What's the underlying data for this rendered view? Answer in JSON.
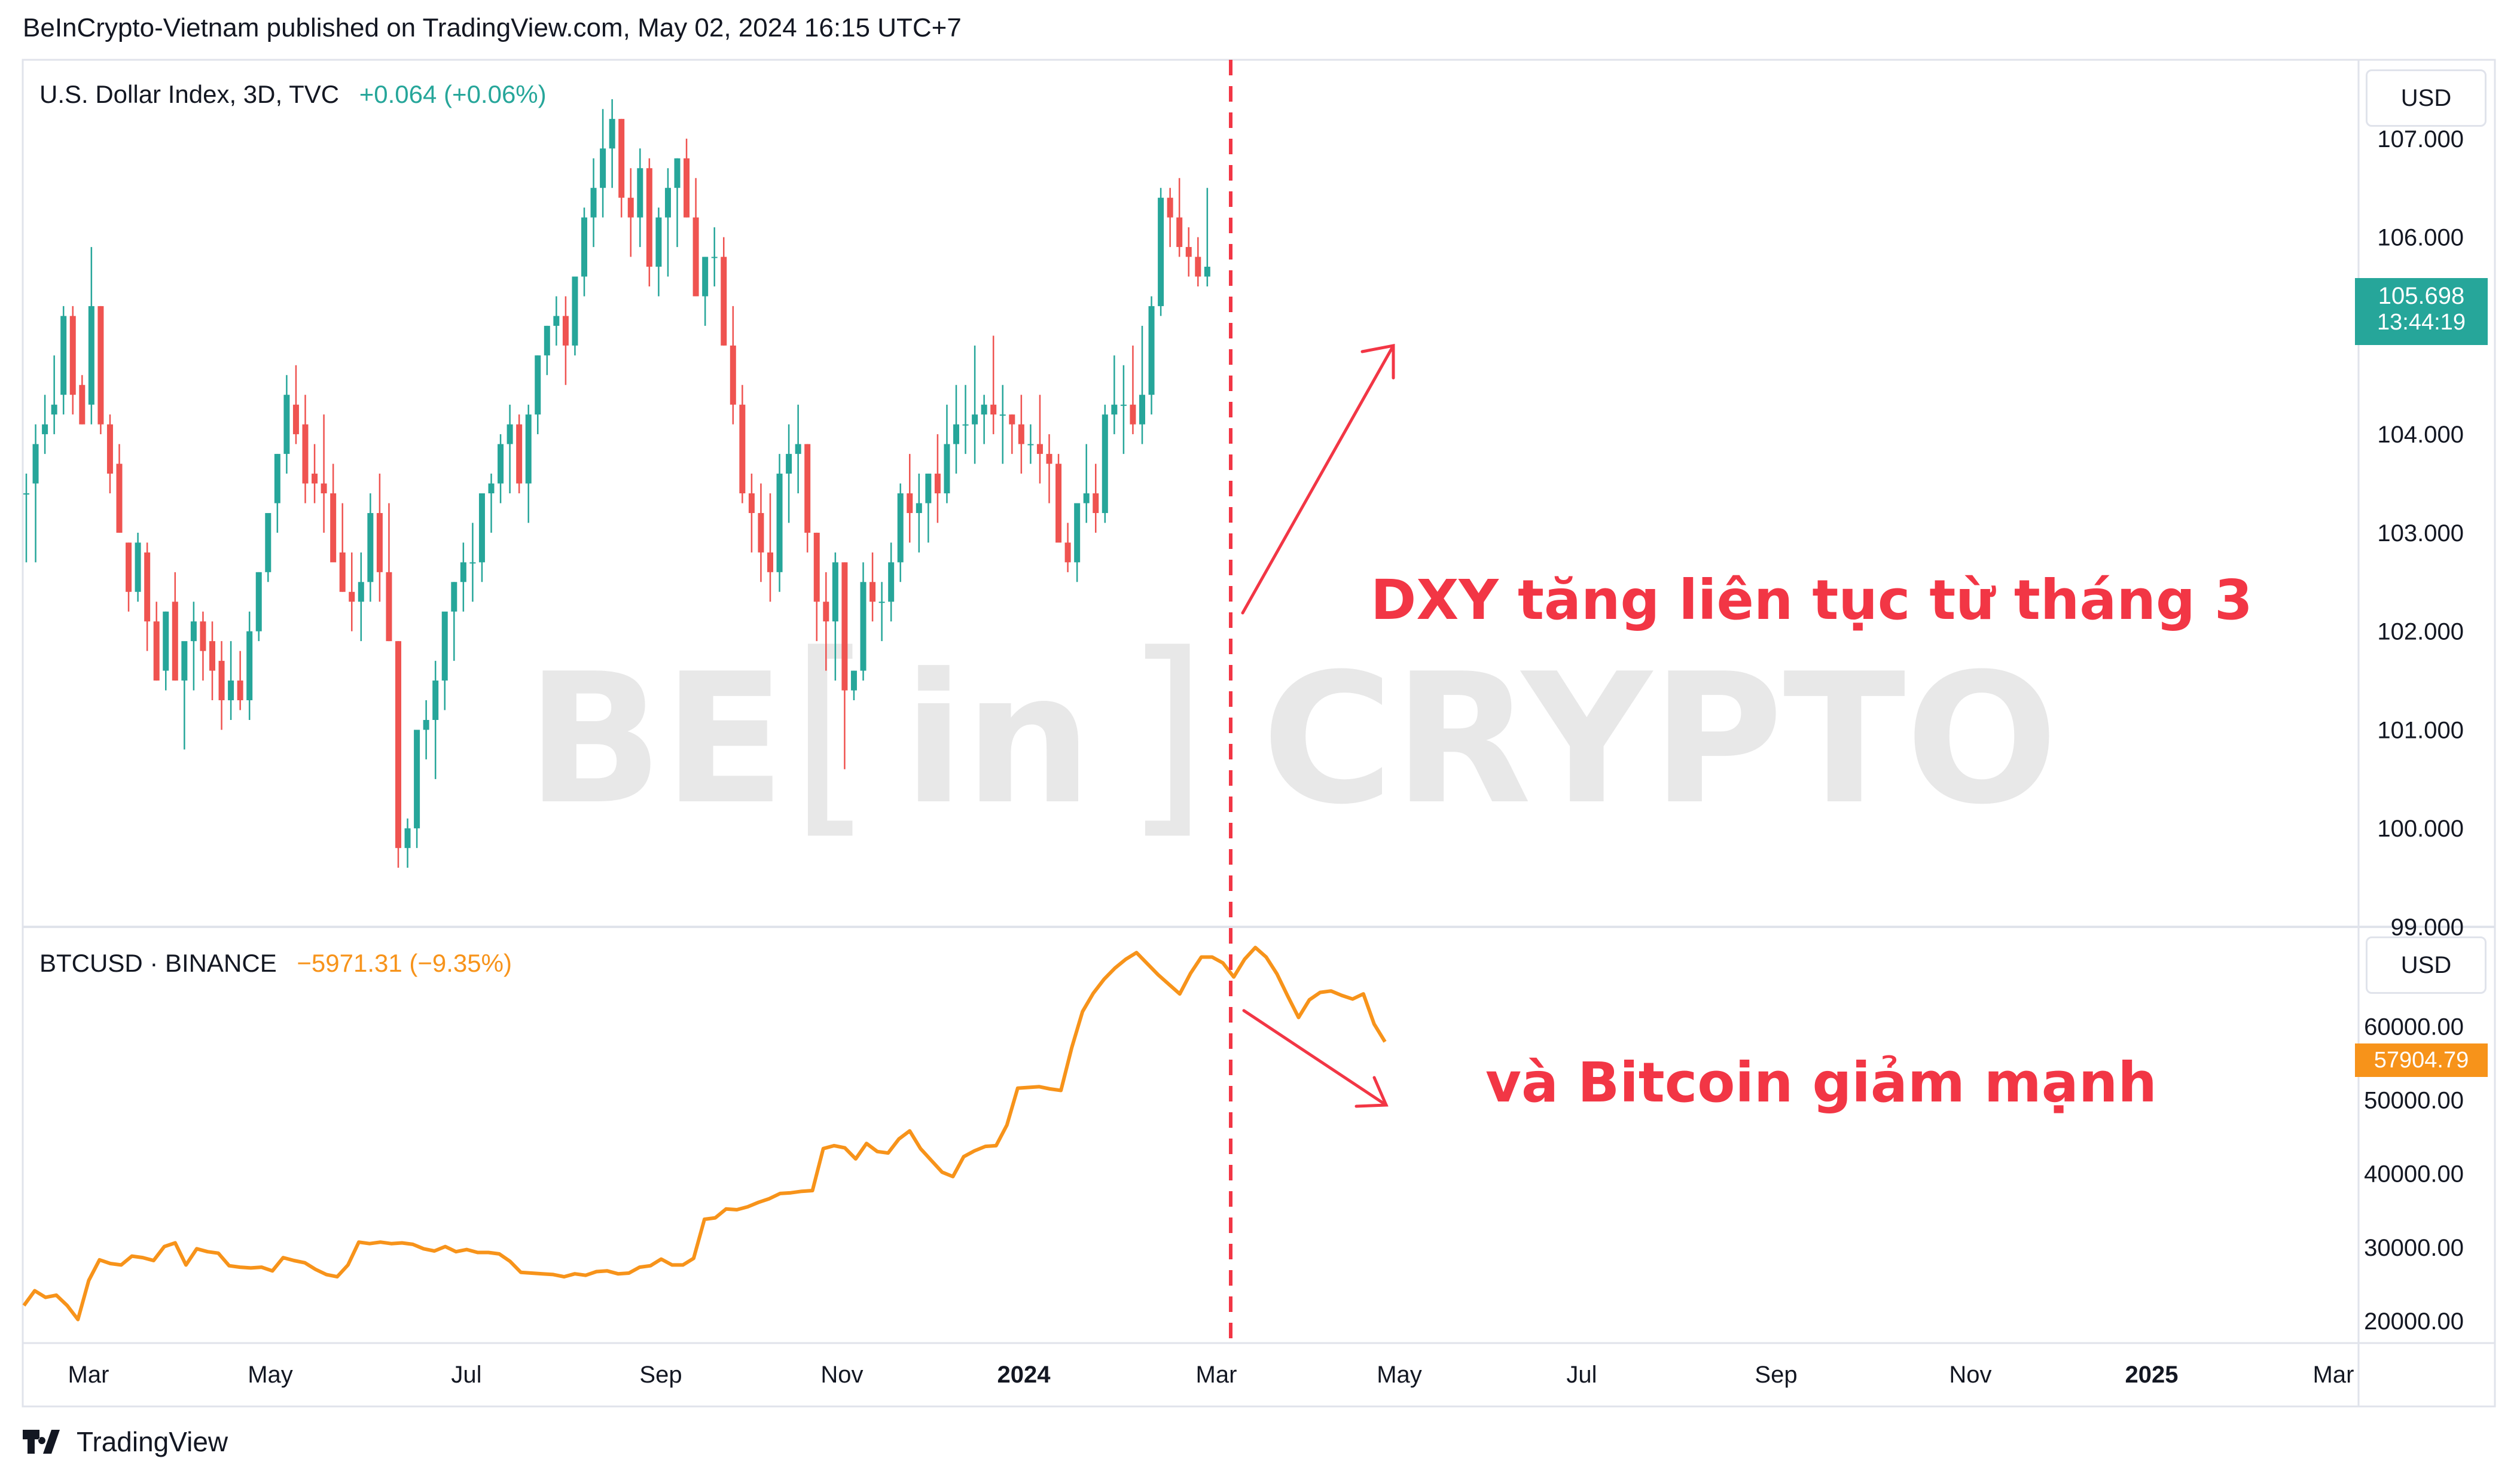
{
  "header": {
    "text": "BeInCrypto-Vietnam published on TradingView.com, May 02, 2024 16:15 UTC+7"
  },
  "footer": {
    "brand": "TradingView",
    "logo_icon": "tradingview-logo-icon"
  },
  "watermark": {
    "text_left": "BE",
    "text_bracket_left": "[",
    "text_mid": "in",
    "text_bracket_right": "]",
    "text_right": "CRYPTO"
  },
  "colors": {
    "up": "#26a69a",
    "down": "#ef5350",
    "btc_line": "#f7931a",
    "annotation": "#f23645",
    "price_tag_dxy": "#26a69a",
    "price_tag_btc": "#f7931a",
    "grid_border": "#e0e3eb"
  },
  "panes": {
    "dxy": {
      "legend_title": "U.S. Dollar Index, 3D, TVC",
      "legend_change": "+0.064 (+0.06%)",
      "currency_button": "USD",
      "price_tag_value": "105.698",
      "price_tag_timer": "13:44:19"
    },
    "btc": {
      "legend_title": "BTCUSD · BINANCE",
      "legend_change": "−5971.31 (−9.35%)",
      "currency_button": "USD",
      "price_tag_value": "57904.79"
    }
  },
  "annotations": {
    "dxy_text": "DXY tăng liên tục từ tháng 3",
    "btc_text": "và Bitcoin giảm mạnh"
  },
  "chart_data": [
    {
      "type": "candlestick",
      "title": "U.S. Dollar Index, 3D, TVC",
      "y_axis_ticks": [
        "107.000",
        "106.000",
        "105.000",
        "104.000",
        "103.000",
        "102.000",
        "101.000",
        "100.000",
        "99.000"
      ],
      "ylim": [
        99.0,
        107.8
      ],
      "last_value": 105.698,
      "candles_ohlc": [
        [
          103.4,
          103.6,
          102.7,
          103.4
        ],
        [
          103.5,
          104.1,
          102.7,
          103.9
        ],
        [
          104.0,
          104.4,
          103.8,
          104.1
        ],
        [
          104.2,
          104.8,
          104.0,
          104.3
        ],
        [
          104.4,
          105.3,
          104.2,
          105.2
        ],
        [
          105.2,
          105.3,
          104.2,
          104.4
        ],
        [
          104.5,
          104.6,
          104.1,
          104.1
        ],
        [
          104.3,
          105.9,
          104.1,
          105.3
        ],
        [
          105.3,
          105.3,
          104.0,
          104.1
        ],
        [
          104.1,
          104.2,
          103.4,
          103.6
        ],
        [
          103.7,
          103.9,
          103.0,
          103.0
        ],
        [
          102.9,
          102.9,
          102.2,
          102.4
        ],
        [
          102.4,
          103.0,
          102.3,
          102.9
        ],
        [
          102.8,
          102.9,
          101.8,
          102.1
        ],
        [
          102.1,
          102.3,
          101.5,
          101.5
        ],
        [
          101.6,
          102.2,
          101.4,
          102.2
        ],
        [
          102.3,
          102.6,
          101.5,
          101.5
        ],
        [
          101.5,
          101.8,
          100.8,
          101.9
        ],
        [
          101.9,
          102.3,
          101.4,
          102.1
        ],
        [
          102.1,
          102.2,
          101.5,
          101.8
        ],
        [
          101.9,
          102.1,
          101.3,
          101.6
        ],
        [
          101.7,
          101.9,
          101.0,
          101.3
        ],
        [
          101.3,
          101.9,
          101.1,
          101.5
        ],
        [
          101.5,
          101.8,
          101.2,
          101.3
        ],
        [
          101.3,
          102.2,
          101.1,
          102.0
        ],
        [
          102.0,
          102.6,
          101.9,
          102.6
        ],
        [
          102.6,
          103.2,
          102.5,
          103.2
        ],
        [
          103.3,
          103.8,
          103.0,
          103.8
        ],
        [
          103.8,
          104.6,
          103.6,
          104.4
        ],
        [
          104.3,
          104.7,
          103.9,
          104.0
        ],
        [
          104.1,
          104.4,
          103.3,
          103.5
        ],
        [
          103.6,
          103.9,
          103.3,
          103.5
        ],
        [
          103.5,
          104.2,
          103.0,
          103.4
        ],
        [
          103.4,
          103.7,
          102.8,
          102.7
        ],
        [
          102.8,
          103.3,
          102.4,
          102.4
        ],
        [
          102.4,
          102.8,
          102.0,
          102.3
        ],
        [
          102.3,
          102.8,
          101.9,
          102.5
        ],
        [
          102.5,
          103.4,
          102.3,
          103.2
        ],
        [
          103.2,
          103.6,
          102.3,
          102.6
        ],
        [
          102.6,
          103.3,
          101.9,
          101.9
        ],
        [
          101.9,
          101.9,
          99.6,
          99.8
        ],
        [
          99.8,
          100.1,
          99.6,
          100.0
        ],
        [
          100.0,
          101.0,
          99.8,
          101.0
        ],
        [
          101.0,
          101.3,
          100.7,
          101.1
        ],
        [
          101.1,
          101.7,
          100.5,
          101.5
        ],
        [
          101.5,
          102.1,
          101.2,
          102.2
        ],
        [
          102.2,
          102.5,
          101.7,
          102.5
        ],
        [
          102.5,
          102.9,
          102.2,
          102.7
        ],
        [
          102.7,
          103.1,
          102.3,
          102.7
        ],
        [
          102.7,
          103.4,
          102.5,
          103.4
        ],
        [
          103.4,
          103.6,
          103.0,
          103.5
        ],
        [
          103.5,
          104.0,
          103.3,
          103.9
        ],
        [
          103.9,
          104.3,
          103.4,
          104.1
        ],
        [
          104.1,
          104.2,
          103.4,
          103.5
        ],
        [
          103.5,
          104.3,
          103.1,
          104.2
        ],
        [
          104.2,
          104.8,
          104.0,
          104.8
        ],
        [
          104.8,
          105.1,
          104.6,
          105.1
        ],
        [
          105.1,
          105.4,
          104.9,
          105.2
        ],
        [
          105.2,
          105.4,
          104.5,
          104.9
        ],
        [
          104.9,
          105.6,
          104.8,
          105.6
        ],
        [
          105.6,
          106.3,
          105.4,
          106.2
        ],
        [
          106.2,
          106.8,
          105.9,
          106.5
        ],
        [
          106.5,
          107.3,
          106.2,
          106.9
        ],
        [
          106.9,
          107.4,
          106.5,
          107.2
        ],
        [
          107.2,
          107.2,
          106.2,
          106.4
        ],
        [
          106.4,
          106.7,
          105.8,
          106.2
        ],
        [
          106.2,
          106.9,
          105.9,
          106.7
        ],
        [
          106.7,
          106.8,
          105.5,
          105.7
        ],
        [
          105.7,
          106.3,
          105.4,
          106.2
        ],
        [
          106.2,
          106.7,
          105.6,
          106.5
        ],
        [
          106.5,
          106.8,
          105.9,
          106.8
        ],
        [
          106.8,
          107.0,
          106.2,
          106.2
        ],
        [
          106.2,
          106.6,
          105.4,
          105.4
        ],
        [
          105.4,
          105.8,
          105.1,
          105.8
        ],
        [
          105.8,
          106.1,
          105.5,
          105.8
        ],
        [
          105.8,
          106.0,
          104.9,
          104.9
        ],
        [
          104.9,
          105.3,
          104.1,
          104.3
        ],
        [
          104.3,
          104.5,
          103.3,
          103.4
        ],
        [
          103.4,
          103.6,
          102.8,
          103.2
        ],
        [
          103.2,
          103.5,
          102.5,
          102.8
        ],
        [
          102.8,
          103.4,
          102.3,
          102.6
        ],
        [
          102.6,
          103.8,
          102.4,
          103.6
        ],
        [
          103.6,
          104.1,
          103.1,
          103.8
        ],
        [
          103.8,
          104.3,
          103.4,
          103.9
        ],
        [
          103.9,
          103.9,
          102.8,
          103.0
        ],
        [
          103.0,
          103.0,
          101.9,
          102.3
        ],
        [
          102.3,
          102.6,
          101.6,
          102.1
        ],
        [
          102.1,
          102.8,
          101.5,
          102.7
        ],
        [
          102.7,
          102.7,
          100.6,
          101.4
        ],
        [
          101.4,
          101.6,
          101.3,
          101.6
        ],
        [
          101.6,
          102.7,
          101.5,
          102.5
        ],
        [
          102.5,
          102.8,
          102.1,
          102.3
        ],
        [
          102.3,
          102.5,
          101.9,
          102.3
        ],
        [
          102.3,
          102.9,
          102.1,
          102.7
        ],
        [
          102.7,
          103.5,
          102.5,
          103.4
        ],
        [
          103.4,
          103.8,
          102.9,
          103.2
        ],
        [
          103.2,
          103.6,
          102.8,
          103.3
        ],
        [
          103.3,
          103.6,
          102.9,
          103.6
        ],
        [
          103.6,
          104.0,
          103.1,
          103.4
        ],
        [
          103.4,
          104.3,
          103.3,
          103.9
        ],
        [
          103.9,
          104.5,
          103.6,
          104.1
        ],
        [
          104.1,
          104.5,
          103.8,
          104.1
        ],
        [
          104.1,
          104.9,
          103.7,
          104.2
        ],
        [
          104.2,
          104.4,
          103.9,
          104.3
        ],
        [
          104.3,
          105.0,
          104.0,
          104.2
        ],
        [
          104.2,
          104.5,
          103.7,
          104.2
        ],
        [
          104.2,
          104.2,
          103.8,
          104.1
        ],
        [
          104.1,
          104.4,
          103.6,
          103.9
        ],
        [
          103.9,
          104.1,
          103.7,
          103.9
        ],
        [
          103.9,
          104.4,
          103.5,
          103.8
        ],
        [
          103.8,
          104.0,
          103.3,
          103.7
        ],
        [
          103.7,
          103.8,
          103.0,
          102.9
        ],
        [
          102.9,
          103.1,
          102.6,
          102.7
        ],
        [
          102.7,
          103.2,
          102.5,
          103.3
        ],
        [
          103.3,
          103.9,
          103.1,
          103.4
        ],
        [
          103.4,
          103.7,
          103.0,
          103.2
        ],
        [
          103.2,
          104.3,
          103.1,
          104.2
        ],
        [
          104.2,
          104.8,
          104.0,
          104.3
        ],
        [
          104.3,
          104.7,
          103.8,
          104.3
        ],
        [
          104.3,
          104.9,
          104.0,
          104.1
        ],
        [
          104.1,
          105.1,
          103.9,
          104.4
        ],
        [
          104.4,
          105.4,
          104.2,
          105.3
        ],
        [
          105.3,
          106.5,
          105.2,
          106.4
        ],
        [
          106.4,
          106.5,
          105.9,
          106.2
        ],
        [
          106.2,
          106.6,
          105.8,
          105.9
        ],
        [
          105.9,
          106.1,
          105.6,
          105.8
        ],
        [
          105.8,
          106.0,
          105.5,
          105.6
        ],
        [
          105.6,
          106.5,
          105.5,
          105.7
        ]
      ]
    },
    {
      "type": "line",
      "title": "BTCUSD · BINANCE",
      "y_axis_ticks": [
        "60000.00",
        "50000.00",
        "40000.00",
        "30000.00",
        "20000.00"
      ],
      "ylim": [
        17000,
        73500
      ],
      "last_value": 57904.79,
      "x_axis_ticks": [
        "Mar",
        "May",
        "Jul",
        "Sep",
        "Nov",
        "2024",
        "Mar",
        "May",
        "Jul",
        "Sep",
        "Nov",
        "2025",
        "Mar"
      ],
      "values": [
        22100,
        24100,
        23200,
        23500,
        22100,
        20200,
        25500,
        28300,
        27800,
        27600,
        28800,
        28600,
        28200,
        30100,
        30600,
        27600,
        29800,
        29400,
        29200,
        27500,
        27300,
        27200,
        27300,
        26800,
        28600,
        28200,
        27900,
        27000,
        26300,
        26000,
        27600,
        30700,
        30500,
        30700,
        30500,
        30600,
        30400,
        29800,
        29500,
        30100,
        29400,
        29700,
        29300,
        29300,
        29100,
        28100,
        26600,
        26500,
        26400,
        26300,
        26000,
        26400,
        26200,
        26700,
        26800,
        26400,
        26500,
        27300,
        27500,
        28400,
        27600,
        27600,
        28500,
        33800,
        34000,
        35200,
        35100,
        35500,
        36100,
        36600,
        37300,
        37400,
        37600,
        37700,
        43400,
        43800,
        43500,
        42000,
        44100,
        43000,
        42800,
        44700,
        45800,
        43400,
        41800,
        40200,
        39600,
        42300,
        43100,
        43700,
        43800,
        46600,
        51600,
        51700,
        51800,
        51500,
        51300,
        57100,
        62000,
        64500,
        66400,
        67900,
        69100,
        70000,
        68500,
        67000,
        65700,
        64400,
        67200,
        69400,
        69400,
        68600,
        66700,
        69100,
        70700,
        69400,
        67100,
        64100,
        61200,
        63600,
        64600,
        64800,
        64200,
        63700,
        64400,
        60300,
        57900
      ]
    }
  ]
}
